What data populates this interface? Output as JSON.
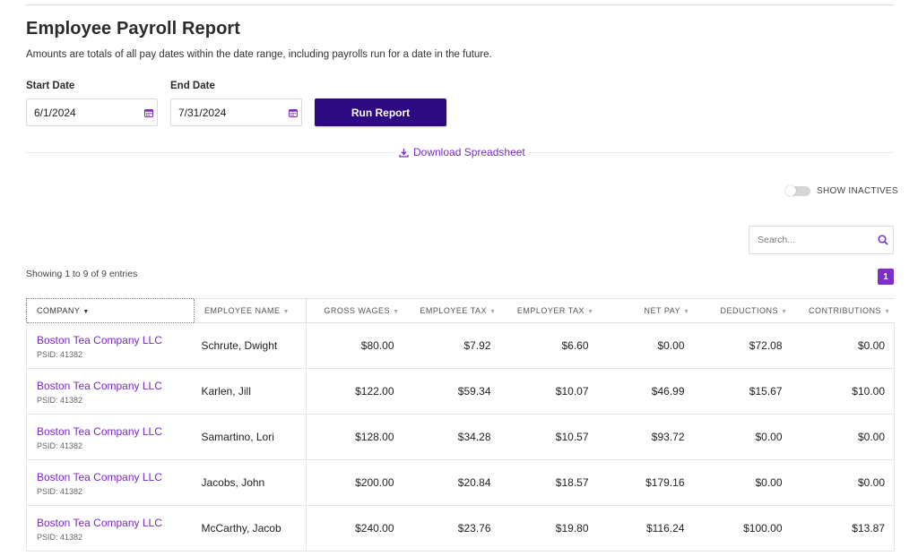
{
  "header": {
    "title": "Employee Payroll Report",
    "subtitle": "Amounts are totals of all pay dates within the date range, including payrolls run for a date in the future."
  },
  "filters": {
    "start_label": "Start Date",
    "start_value": "6/1/2024",
    "end_label": "End Date",
    "end_value": "7/31/2024",
    "run_label": "Run Report",
    "download_label": "Download Spreadsheet"
  },
  "toolbar": {
    "show_inactives_label": "SHOW INACTIVES",
    "show_inactives_on": false,
    "search_placeholder": "Search...",
    "showing_text": "Showing 1 to 9 of 9 entries",
    "current_page": "1"
  },
  "colors": {
    "primary": "#2e0a82",
    "accent": "#7a2bc2"
  },
  "icons": {
    "calendar": "calendar-icon",
    "download": "download-icon",
    "search": "search-icon",
    "sort": "sort-arrow-icon"
  },
  "table": {
    "columns": [
      {
        "label": "COMPANY",
        "sorted": true
      },
      {
        "label": "EMPLOYEE NAME"
      },
      {
        "label": "GROSS WAGES"
      },
      {
        "label": "EMPLOYEE TAX"
      },
      {
        "label": "EMPLOYER TAX"
      },
      {
        "label": "NET PAY"
      },
      {
        "label": "DEDUCTIONS"
      },
      {
        "label": "CONTRIBUTIONS"
      }
    ],
    "rows": [
      {
        "company": "Boston Tea Company LLC",
        "psid": "PSID: 41382",
        "employee": "Schrute, Dwight",
        "gross": "$80.00",
        "emp_tax": "$7.92",
        "er_tax": "$6.60",
        "net": "$0.00",
        "deductions": "$72.08",
        "contributions": "$0.00"
      },
      {
        "company": "Boston Tea Company LLC",
        "psid": "PSID: 41382",
        "employee": "Karlen, Jill",
        "gross": "$122.00",
        "emp_tax": "$59.34",
        "er_tax": "$10.07",
        "net": "$46.99",
        "deductions": "$15.67",
        "contributions": "$10.00"
      },
      {
        "company": "Boston Tea Company LLC",
        "psid": "PSID: 41382",
        "employee": "Samartino, Lori",
        "gross": "$128.00",
        "emp_tax": "$34.28",
        "er_tax": "$10.57",
        "net": "$93.72",
        "deductions": "$0.00",
        "contributions": "$0.00"
      },
      {
        "company": "Boston Tea Company LLC",
        "psid": "PSID: 41382",
        "employee": "Jacobs, John",
        "gross": "$200.00",
        "emp_tax": "$20.84",
        "er_tax": "$18.57",
        "net": "$179.16",
        "deductions": "$0.00",
        "contributions": "$0.00"
      },
      {
        "company": "Boston Tea Company LLC",
        "psid": "PSID: 41382",
        "employee": "McCarthy, Jacob",
        "gross": "$240.00",
        "emp_tax": "$23.76",
        "er_tax": "$19.80",
        "net": "$116.24",
        "deductions": "$100.00",
        "contributions": "$13.87"
      }
    ]
  }
}
